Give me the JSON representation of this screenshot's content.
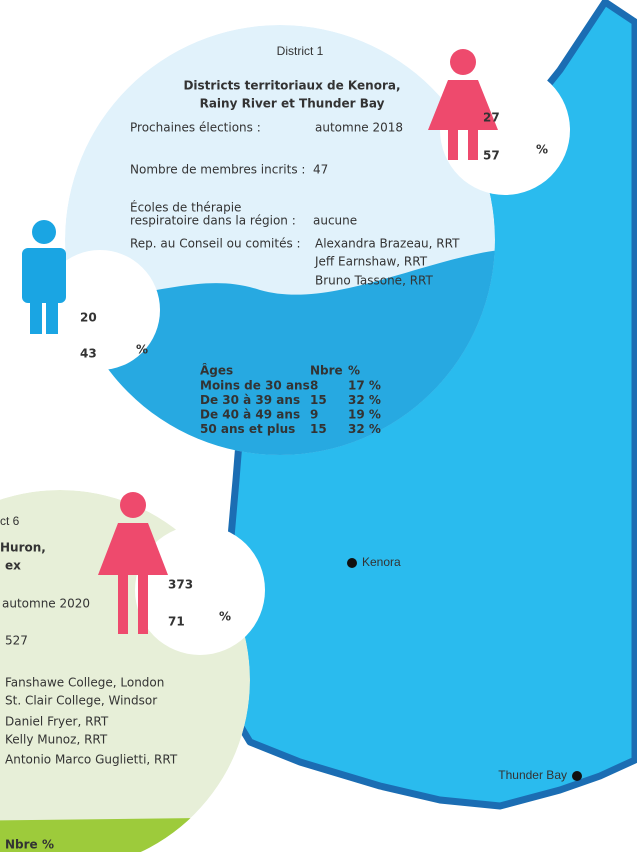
{
  "district1": {
    "title": "District 1",
    "subtitle": [
      "Districts territoriaux de Kenora,",
      "Rainy River et Thunder Bay"
    ],
    "elections": {
      "label": "Prochaines élections :",
      "value": "automne 2018"
    },
    "members": {
      "label": "Nombre de membres incrits :",
      "value": "47"
    },
    "schools": {
      "label": [
        "Écoles de thérapie",
        "respiratoire dans la région :"
      ],
      "value": "aucune"
    },
    "reps": {
      "label": "Rep. au Conseil ou comités :",
      "values": [
        "Alexandra Brazeau, RRT",
        "Jeff Earnshaw, RRT",
        "Bruno Tassone, RRT"
      ]
    },
    "female": {
      "count": "27",
      "percent": "57",
      "unit": "%"
    },
    "male": {
      "count": "20",
      "percent": "43",
      "unit": "%"
    },
    "ages": {
      "header": [
        "Âges",
        "Nbre",
        "%"
      ],
      "rows": [
        [
          "Moins de 30 ans",
          "8",
          "17 %"
        ],
        [
          "De 30 à 39 ans",
          "15",
          "32 %"
        ],
        [
          "De 40 à 49 ans",
          "9",
          "19 %"
        ],
        [
          "50 ans et plus",
          "15",
          "32 %"
        ]
      ]
    }
  },
  "district6": {
    "title": "ct 6",
    "subtitle": [
      "Huron,",
      "ex"
    ],
    "elections": "automne 2020",
    "members": "527",
    "schools": [
      "Fanshawe College, London",
      "St. Clair College, Windsor"
    ],
    "reps": [
      "Daniel Fryer, RRT",
      "Kelly Munoz, RRT",
      "Antonio Marco Guglietti, RRT"
    ],
    "female": {
      "count": "373",
      "percent": "71",
      "unit": "%"
    },
    "ages_header": [
      "Nbre",
      "%"
    ]
  },
  "map": {
    "cities": [
      "Kenora",
      "Thunder Bay"
    ]
  }
}
